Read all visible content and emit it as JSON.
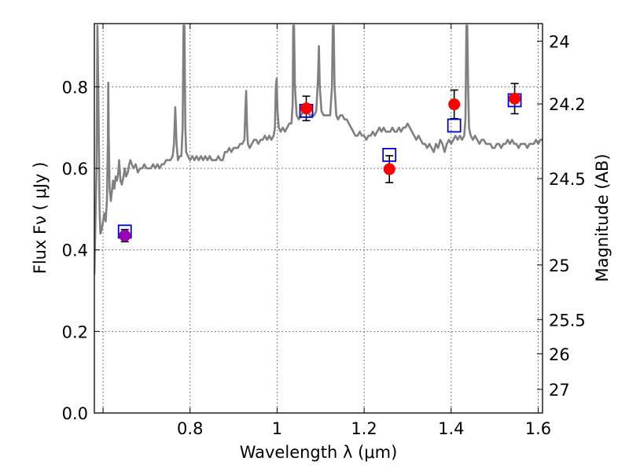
{
  "chart_data": {
    "type": "scatter",
    "title": "",
    "xlabel": "Wavelength  λ (μm)",
    "ylabel": "Flux  Fν  ( μJy )",
    "y2label": "Magnitude (AB)",
    "xlim": [
      0.58,
      1.61
    ],
    "ylim": [
      0.0,
      0.955
    ],
    "grid": true,
    "legend": "none",
    "x_ticks": [
      {
        "value": 0.6,
        "label": ""
      },
      {
        "value": 0.8,
        "label": "0.8"
      },
      {
        "value": 1.0,
        "label": "1"
      },
      {
        "value": 1.2,
        "label": "1.2"
      },
      {
        "value": 1.4,
        "label": "1.4"
      },
      {
        "value": 1.6,
        "label": "1.6"
      }
    ],
    "y_ticks": [
      {
        "value": 0.0,
        "label": "0.0"
      },
      {
        "value": 0.2,
        "label": "0.2"
      },
      {
        "value": 0.4,
        "label": "0.4"
      },
      {
        "value": 0.6,
        "label": "0.6"
      },
      {
        "value": 0.8,
        "label": "0.8"
      }
    ],
    "y2_ticks": [
      {
        "flux": 0.912,
        "label": "24"
      },
      {
        "flux": 0.758,
        "label": "24.2"
      },
      {
        "flux": 0.575,
        "label": "24.5"
      },
      {
        "flux": 0.363,
        "label": "25"
      },
      {
        "flux": 0.229,
        "label": "25.5"
      },
      {
        "flux": 0.145,
        "label": "26"
      },
      {
        "flux": 0.058,
        "label": "27"
      }
    ],
    "series": [
      {
        "kind": "model-spectrum",
        "color": "#808080",
        "points": [
          [
            0.58,
            0.34
          ],
          [
            0.585,
            0.6
          ],
          [
            0.587,
            0.95
          ],
          [
            0.589,
            0.8
          ],
          [
            0.592,
            0.5
          ],
          [
            0.594,
            0.44
          ],
          [
            0.597,
            0.45
          ],
          [
            0.6,
            0.47
          ],
          [
            0.603,
            0.49
          ],
          [
            0.606,
            0.47
          ],
          [
            0.609,
            0.52
          ],
          [
            0.611,
            0.66
          ],
          [
            0.612,
            0.81
          ],
          [
            0.613,
            0.68
          ],
          [
            0.615,
            0.55
          ],
          [
            0.618,
            0.52
          ],
          [
            0.62,
            0.54
          ],
          [
            0.623,
            0.57
          ],
          [
            0.626,
            0.55
          ],
          [
            0.629,
            0.58
          ],
          [
            0.632,
            0.57
          ],
          [
            0.635,
            0.59
          ],
          [
            0.637,
            0.62
          ],
          [
            0.64,
            0.57
          ],
          [
            0.643,
            0.56
          ],
          [
            0.647,
            0.58
          ],
          [
            0.65,
            0.6
          ],
          [
            0.653,
            0.58
          ],
          [
            0.657,
            0.59
          ],
          [
            0.66,
            0.61
          ],
          [
            0.663,
            0.62
          ],
          [
            0.666,
            0.61
          ],
          [
            0.67,
            0.6
          ],
          [
            0.675,
            0.61
          ],
          [
            0.68,
            0.59
          ],
          [
            0.685,
            0.6
          ],
          [
            0.69,
            0.6
          ],
          [
            0.695,
            0.61
          ],
          [
            0.7,
            0.6
          ],
          [
            0.705,
            0.6
          ],
          [
            0.71,
            0.6
          ],
          [
            0.715,
            0.61
          ],
          [
            0.72,
            0.6
          ],
          [
            0.725,
            0.61
          ],
          [
            0.73,
            0.6
          ],
          [
            0.735,
            0.61
          ],
          [
            0.74,
            0.61
          ],
          [
            0.745,
            0.62
          ],
          [
            0.75,
            0.62
          ],
          [
            0.755,
            0.62
          ],
          [
            0.76,
            0.63
          ],
          [
            0.763,
            0.66
          ],
          [
            0.766,
            0.75
          ],
          [
            0.769,
            0.66
          ],
          [
            0.772,
            0.62
          ],
          [
            0.776,
            0.63
          ],
          [
            0.78,
            0.63
          ],
          [
            0.783,
            0.7
          ],
          [
            0.785,
            0.95
          ],
          [
            0.787,
            0.95
          ],
          [
            0.789,
            0.7
          ],
          [
            0.791,
            0.64
          ],
          [
            0.795,
            0.63
          ],
          [
            0.8,
            0.62
          ],
          [
            0.805,
            0.63
          ],
          [
            0.81,
            0.62
          ],
          [
            0.815,
            0.63
          ],
          [
            0.82,
            0.62
          ],
          [
            0.825,
            0.63
          ],
          [
            0.83,
            0.62
          ],
          [
            0.835,
            0.63
          ],
          [
            0.84,
            0.62
          ],
          [
            0.845,
            0.63
          ],
          [
            0.85,
            0.62
          ],
          [
            0.855,
            0.62
          ],
          [
            0.86,
            0.62
          ],
          [
            0.865,
            0.63
          ],
          [
            0.87,
            0.62
          ],
          [
            0.875,
            0.62
          ],
          [
            0.88,
            0.64
          ],
          [
            0.885,
            0.64
          ],
          [
            0.89,
            0.65
          ],
          [
            0.895,
            0.64
          ],
          [
            0.9,
            0.65
          ],
          [
            0.905,
            0.65
          ],
          [
            0.91,
            0.65
          ],
          [
            0.915,
            0.66
          ],
          [
            0.92,
            0.66
          ],
          [
            0.925,
            0.67
          ],
          [
            0.927,
            0.74
          ],
          [
            0.929,
            0.79
          ],
          [
            0.931,
            0.7
          ],
          [
            0.933,
            0.66
          ],
          [
            0.937,
            0.65
          ],
          [
            0.942,
            0.66
          ],
          [
            0.947,
            0.67
          ],
          [
            0.952,
            0.67
          ],
          [
            0.957,
            0.66
          ],
          [
            0.962,
            0.67
          ],
          [
            0.967,
            0.67
          ],
          [
            0.972,
            0.68
          ],
          [
            0.977,
            0.67
          ],
          [
            0.982,
            0.68
          ],
          [
            0.987,
            0.67
          ],
          [
            0.992,
            0.68
          ],
          [
            0.995,
            0.7
          ],
          [
            0.997,
            0.8
          ],
          [
            0.999,
            0.82
          ],
          [
            1.001,
            0.74
          ],
          [
            1.004,
            0.7
          ],
          [
            1.008,
            0.69
          ],
          [
            1.013,
            0.7
          ],
          [
            1.018,
            0.69
          ],
          [
            1.023,
            0.7
          ],
          [
            1.028,
            0.71
          ],
          [
            1.033,
            0.71
          ],
          [
            1.036,
            0.76
          ],
          [
            1.037,
            0.95
          ],
          [
            1.039,
            0.95
          ],
          [
            1.041,
            0.8
          ],
          [
            1.045,
            0.73
          ],
          [
            1.05,
            0.72
          ],
          [
            1.055,
            0.73
          ],
          [
            1.06,
            0.74
          ],
          [
            1.065,
            0.74
          ],
          [
            1.07,
            0.74
          ],
          [
            1.075,
            0.73
          ],
          [
            1.08,
            0.73
          ],
          [
            1.085,
            0.73
          ],
          [
            1.09,
            0.74
          ],
          [
            1.094,
            0.82
          ],
          [
            1.096,
            0.9
          ],
          [
            1.098,
            0.8
          ],
          [
            1.102,
            0.74
          ],
          [
            1.107,
            0.73
          ],
          [
            1.112,
            0.73
          ],
          [
            1.117,
            0.73
          ],
          [
            1.122,
            0.73
          ],
          [
            1.126,
            0.8
          ],
          [
            1.128,
            0.95
          ],
          [
            1.13,
            0.95
          ],
          [
            1.132,
            0.8
          ],
          [
            1.136,
            0.73
          ],
          [
            1.14,
            0.72
          ],
          [
            1.145,
            0.73
          ],
          [
            1.15,
            0.73
          ],
          [
            1.155,
            0.72
          ],
          [
            1.16,
            0.72
          ],
          [
            1.165,
            0.71
          ],
          [
            1.17,
            0.7
          ],
          [
            1.175,
            0.69
          ],
          [
            1.18,
            0.68
          ],
          [
            1.185,
            0.68
          ],
          [
            1.19,
            0.69
          ],
          [
            1.195,
            0.68
          ],
          [
            1.2,
            0.68
          ],
          [
            1.205,
            0.67
          ],
          [
            1.21,
            0.68
          ],
          [
            1.215,
            0.68
          ],
          [
            1.22,
            0.69
          ],
          [
            1.225,
            0.68
          ],
          [
            1.23,
            0.69
          ],
          [
            1.235,
            0.7
          ],
          [
            1.24,
            0.69
          ],
          [
            1.245,
            0.7
          ],
          [
            1.25,
            0.69
          ],
          [
            1.255,
            0.69
          ],
          [
            1.26,
            0.69
          ],
          [
            1.265,
            0.7
          ],
          [
            1.27,
            0.69
          ],
          [
            1.275,
            0.69
          ],
          [
            1.28,
            0.7
          ],
          [
            1.285,
            0.69
          ],
          [
            1.29,
            0.7
          ],
          [
            1.295,
            0.7
          ],
          [
            1.3,
            0.71
          ],
          [
            1.305,
            0.7
          ],
          [
            1.31,
            0.69
          ],
          [
            1.315,
            0.68
          ],
          [
            1.32,
            0.67
          ],
          [
            1.325,
            0.68
          ],
          [
            1.33,
            0.67
          ],
          [
            1.335,
            0.66
          ],
          [
            1.34,
            0.66
          ],
          [
            1.345,
            0.65
          ],
          [
            1.35,
            0.66
          ],
          [
            1.355,
            0.65
          ],
          [
            1.36,
            0.64
          ],
          [
            1.365,
            0.66
          ],
          [
            1.37,
            0.65
          ],
          [
            1.375,
            0.67
          ],
          [
            1.38,
            0.66
          ],
          [
            1.385,
            0.64
          ],
          [
            1.39,
            0.66
          ],
          [
            1.395,
            0.67
          ],
          [
            1.4,
            0.66
          ],
          [
            1.405,
            0.67
          ],
          [
            1.41,
            0.68
          ],
          [
            1.415,
            0.67
          ],
          [
            1.42,
            0.68
          ],
          [
            1.425,
            0.67
          ],
          [
            1.43,
            0.68
          ],
          [
            1.433,
            0.72
          ],
          [
            1.435,
            0.95
          ],
          [
            1.437,
            0.95
          ],
          [
            1.439,
            0.8
          ],
          [
            1.441,
            0.7
          ],
          [
            1.445,
            0.68
          ],
          [
            1.45,
            0.67
          ],
          [
            1.455,
            0.68
          ],
          [
            1.46,
            0.67
          ],
          [
            1.465,
            0.66
          ],
          [
            1.47,
            0.67
          ],
          [
            1.475,
            0.67
          ],
          [
            1.48,
            0.66
          ],
          [
            1.485,
            0.66
          ],
          [
            1.49,
            0.66
          ],
          [
            1.495,
            0.65
          ],
          [
            1.5,
            0.65
          ],
          [
            1.505,
            0.66
          ],
          [
            1.51,
            0.66
          ],
          [
            1.515,
            0.65
          ],
          [
            1.52,
            0.66
          ],
          [
            1.525,
            0.66
          ],
          [
            1.53,
            0.67
          ],
          [
            1.535,
            0.66
          ],
          [
            1.54,
            0.67
          ],
          [
            1.545,
            0.66
          ],
          [
            1.55,
            0.66
          ],
          [
            1.555,
            0.65
          ],
          [
            1.56,
            0.66
          ],
          [
            1.565,
            0.66
          ],
          [
            1.57,
            0.66
          ],
          [
            1.575,
            0.65
          ],
          [
            1.58,
            0.66
          ],
          [
            1.585,
            0.66
          ],
          [
            1.59,
            0.66
          ],
          [
            1.595,
            0.67
          ],
          [
            1.6,
            0.66
          ],
          [
            1.605,
            0.67
          ],
          [
            1.61,
            0.67
          ]
        ]
      },
      {
        "kind": "model-photometry",
        "marker": "open-square",
        "color": "#0000cc",
        "points": [
          {
            "x": 0.65,
            "y": 0.445
          },
          {
            "x": 1.067,
            "y": 0.741
          },
          {
            "x": 1.258,
            "y": 0.633
          },
          {
            "x": 1.407,
            "y": 0.705
          },
          {
            "x": 1.546,
            "y": 0.767
          }
        ]
      },
      {
        "kind": "observed-photometry",
        "marker": "filled-circle",
        "color": "#ff0000",
        "points": [
          {
            "x": 0.65,
            "y": 0.435,
            "err": 0.015,
            "color": "#9a00b0"
          },
          {
            "x": 1.067,
            "y": 0.747,
            "err": 0.03
          },
          {
            "x": 1.258,
            "y": 0.598,
            "err": 0.033
          },
          {
            "x": 1.407,
            "y": 0.757,
            "err": 0.035
          },
          {
            "x": 1.546,
            "y": 0.771,
            "err": 0.037
          }
        ]
      }
    ]
  }
}
